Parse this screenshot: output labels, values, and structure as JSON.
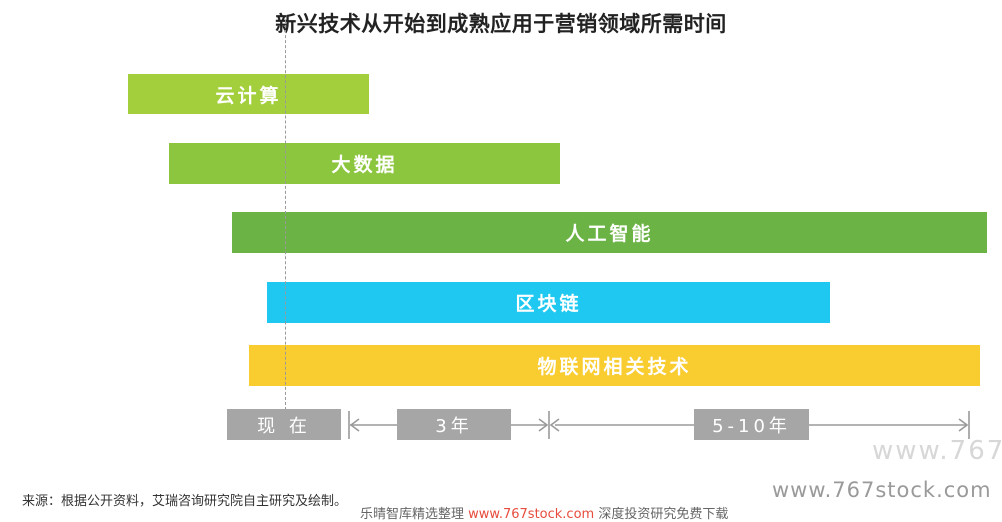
{
  "chart_data": {
    "type": "bar",
    "title": "新兴技术从开始到成熟应用于营销领域所需时间",
    "series": [
      {
        "name": "云计算",
        "color": "#a3cf3c"
      },
      {
        "name": "大数据",
        "color": "#8cc63f"
      },
      {
        "name": "人工智能",
        "color": "#6ab344"
      },
      {
        "name": "区块链",
        "color": "#1ec8f0"
      },
      {
        "name": "物联网相关技术",
        "color": "#f9cc30"
      }
    ],
    "timeline": [
      "现 在",
      "3年",
      "5-10年"
    ]
  },
  "source": "来源：根据公开资料，艾瑞咨询研究院自主研究及绘制。",
  "watermarks": {
    "faint": "www.767",
    "main": "www.767stock.com",
    "bottom_prefix": "乐晴智库精选整理",
    "bottom_red": "www.767stock.com",
    "bottom_suffix": "深度投资研究免费下载"
  }
}
